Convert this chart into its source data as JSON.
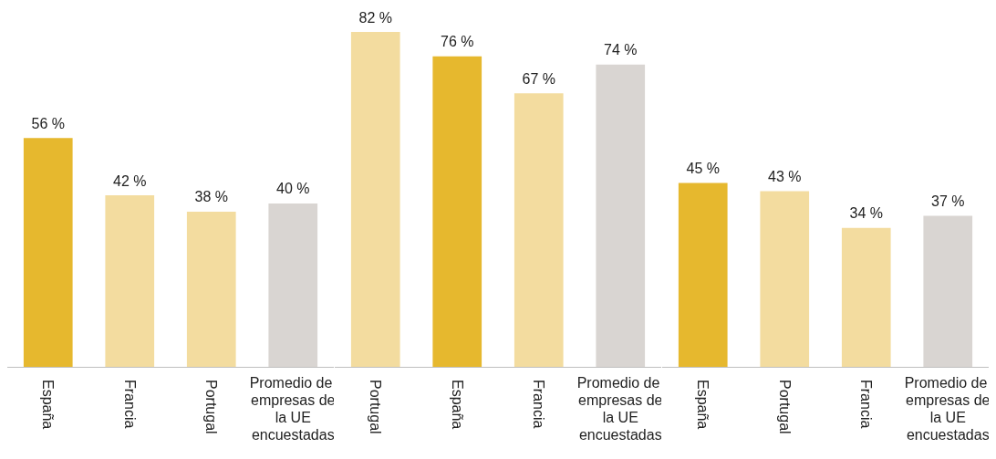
{
  "chart_data": [
    {
      "type": "bar",
      "categories": [
        "España",
        "Francia",
        "Portugal",
        "Promedio de empresas de la UE encuestadas"
      ],
      "values": [
        56,
        42,
        38,
        40
      ],
      "colors": [
        "#e6b82e",
        "#f3dc9f",
        "#f3dc9f",
        "#d9d5d2"
      ],
      "value_labels": [
        "56 %",
        "42 %",
        "38 %",
        "40 %"
      ]
    },
    {
      "type": "bar",
      "categories": [
        "Portugal",
        "España",
        "Francia",
        "Promedio de empresas de la UE encuestadas"
      ],
      "values": [
        82,
        76,
        67,
        74
      ],
      "colors": [
        "#f3dc9f",
        "#e6b82e",
        "#f3dc9f",
        "#d9d5d2"
      ],
      "value_labels": [
        "82 %",
        "76 %",
        "67 %",
        "74 %"
      ]
    },
    {
      "type": "bar",
      "categories": [
        "España",
        "Portugal",
        "Francia",
        "Promedio de empresas de la UE encuestadas"
      ],
      "values": [
        45,
        43,
        34,
        37
      ],
      "colors": [
        "#e6b82e",
        "#f3dc9f",
        "#f3dc9f",
        "#d9d5d2"
      ],
      "value_labels": [
        "45 %",
        "43 %",
        "34 %",
        "37 %"
      ]
    }
  ]
}
